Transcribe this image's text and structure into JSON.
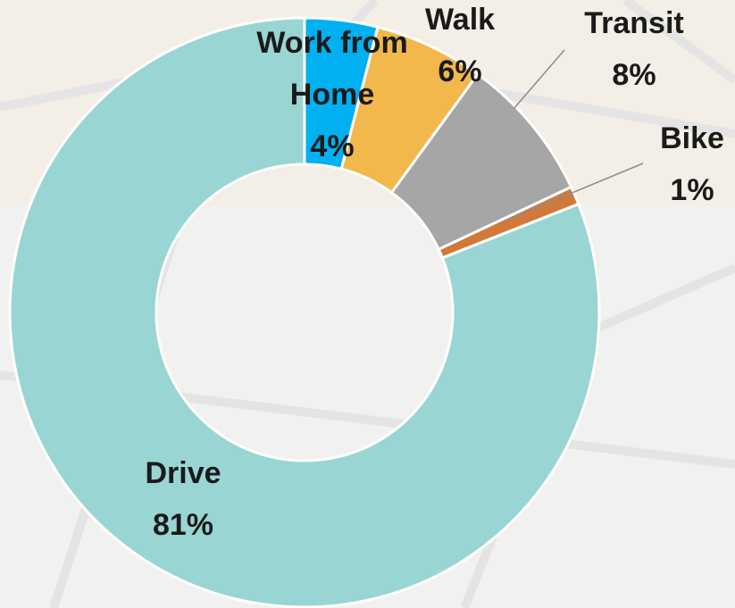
{
  "chart_data": {
    "type": "donut",
    "categories": [
      "Work from Home",
      "Walk",
      "Transit",
      "Bike",
      "Drive"
    ],
    "values": [
      4,
      6,
      8,
      1,
      81
    ],
    "value_labels": [
      "4%",
      "6%",
      "8%",
      "1%",
      "81%"
    ],
    "colors": [
      "#00b0f0",
      "#f2b84b",
      "#a6a6a6",
      "#d2793a",
      "#99d5d3"
    ]
  }
}
